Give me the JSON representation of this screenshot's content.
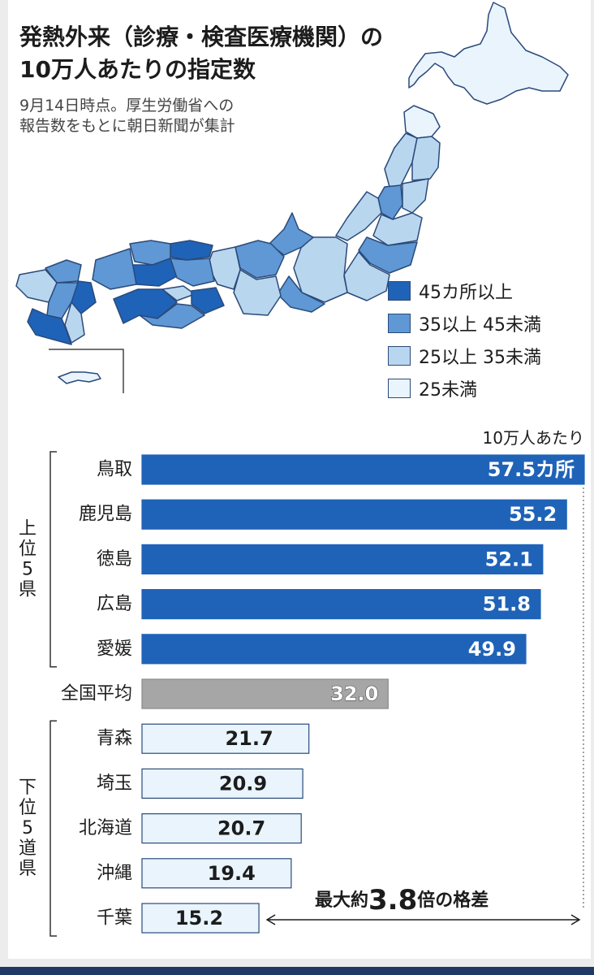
{
  "title": [
    "発熱外来（診療・検査医療機関）の",
    "10万人あたりの指定数"
  ],
  "subtitle": [
    "9月14日時点。厚生労働省への",
    "報告数をもとに朝日新聞が集計"
  ],
  "colors": {
    "cat45plus": "#1f63b8",
    "cat35to45": "#5f98d4",
    "cat25to35": "#b9d6ef",
    "catUnder25": "#e9f4fd",
    "average": "#a6a6a6",
    "border": "#2a4a7a"
  },
  "legend": [
    {
      "label": "45カ所以上",
      "color": "#1f63b8"
    },
    {
      "label": "35以上 45未満",
      "color": "#5f98d4"
    },
    {
      "label": "25以上 35未満",
      "color": "#b9d6ef"
    },
    {
      "label": "25未満",
      "color": "#e9f4fd"
    }
  ],
  "chart_data": {
    "type": "bar",
    "orientation": "horizontal",
    "unit_label": "10万人あたり",
    "xlim": [
      0,
      57.5
    ],
    "groups": [
      {
        "label": "上位5県",
        "categories": [
          "鳥取",
          "鹿児島",
          "徳島",
          "広島",
          "愛媛"
        ],
        "values": [
          57.5,
          55.2,
          52.1,
          51.8,
          49.9
        ],
        "value_labels": [
          "57.5カ所",
          "55.2",
          "52.1",
          "51.8",
          "49.9"
        ],
        "color": "#1f63b8"
      },
      {
        "label": "",
        "categories": [
          "全国平均"
        ],
        "values": [
          32.0
        ],
        "value_labels": [
          "32.0"
        ],
        "color": "#a6a6a6"
      },
      {
        "label": "下位5道県",
        "categories": [
          "青森",
          "埼玉",
          "北海道",
          "沖縄",
          "千葉"
        ],
        "values": [
          21.7,
          20.9,
          20.7,
          19.4,
          15.2
        ],
        "value_labels": [
          "21.7",
          "20.9",
          "20.7",
          "19.4",
          "15.2"
        ],
        "color": "#e9f4fd"
      }
    ],
    "annotation": {
      "prefix": "最大約",
      "number": "3.8",
      "suffix": "倍の格差"
    }
  }
}
